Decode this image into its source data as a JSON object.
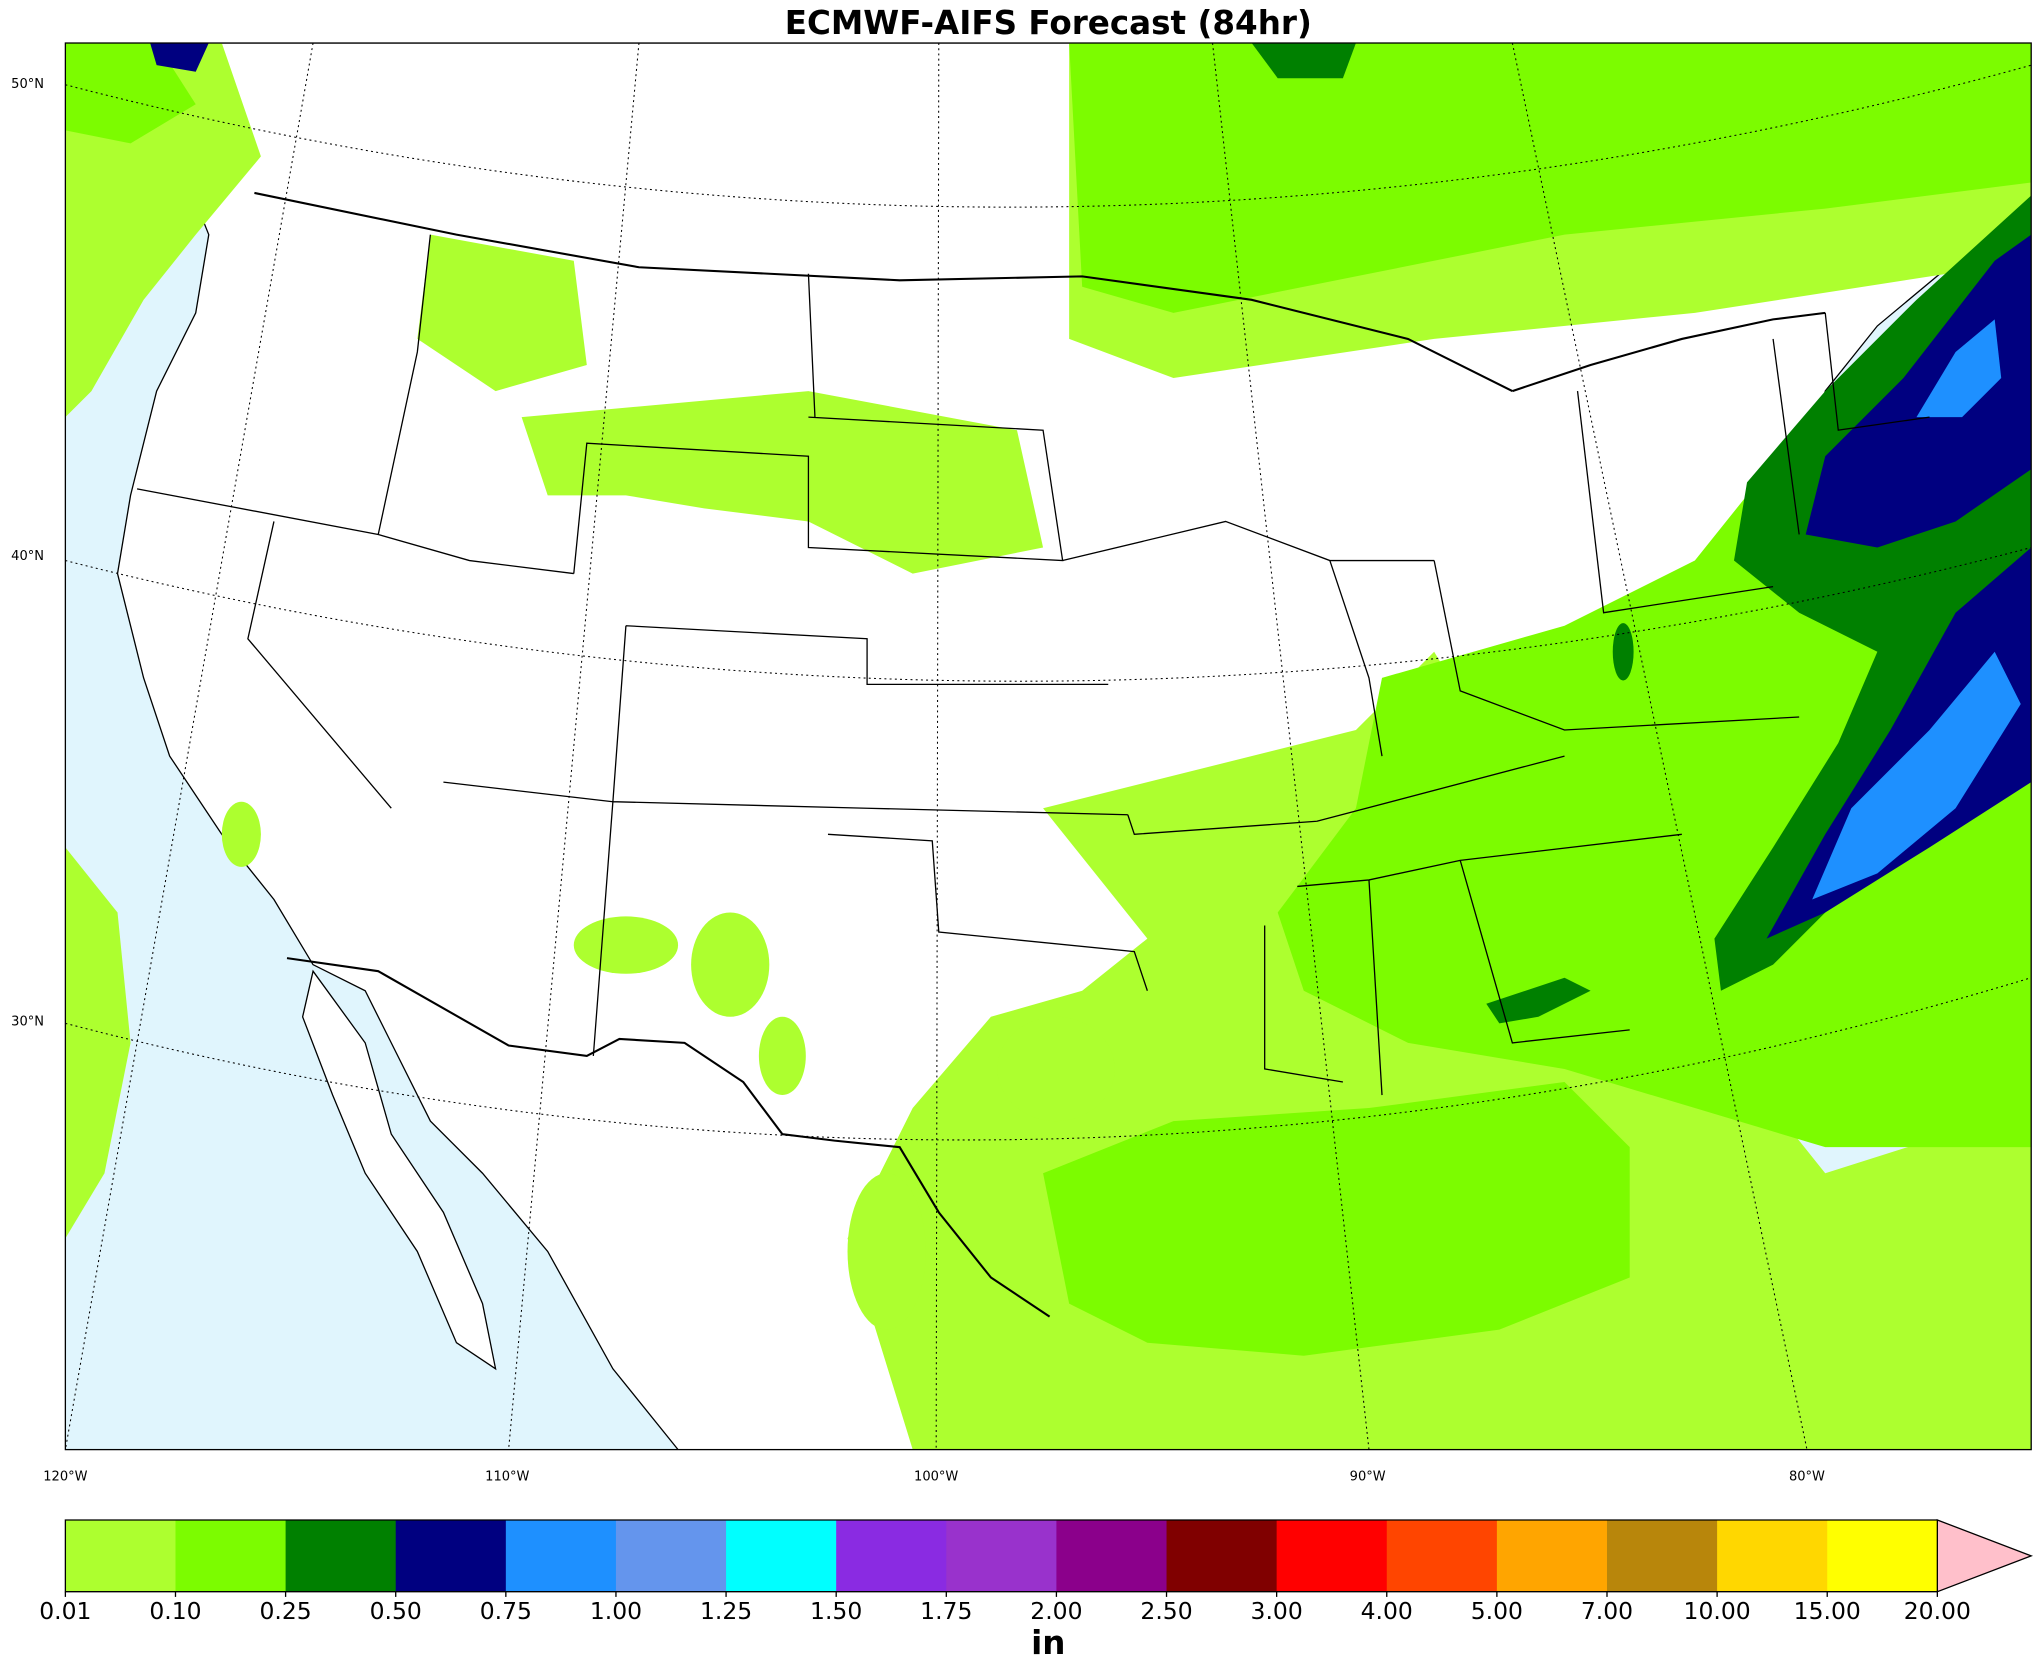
{
  "title": "ECMWF-AIFS Forecast (84hr)",
  "map": {
    "lat_labels": [
      "50°N",
      "40°N",
      "30°N"
    ],
    "lon_labels": [
      "120°W",
      "110°W",
      "100°W",
      "90°W",
      "80°W"
    ]
  },
  "colorbar": {
    "levels": [
      0.01,
      {
        "value": 0.1,
        "label": "0.10"
      },
      0.25,
      {
        "value": 0.5,
        "label": "0.50"
      },
      0.75,
      {
        "value": 1,
        "label": "1.00"
      },
      1.25,
      {
        "value": 1.5,
        "label": "1.50"
      },
      1.75,
      {
        "value": 2,
        "label": "2.00"
      },
      {
        "value": 2.5,
        "label": "2.50"
      },
      {
        "value": 3,
        "label": "3.00"
      },
      {
        "value": 4,
        "label": "4.00"
      },
      {
        "value": 5,
        "label": "5.00"
      },
      {
        "value": 7,
        "label": "7.00"
      },
      {
        "value": 10,
        "label": "10.00"
      },
      {
        "value": 15,
        "label": "15.00"
      },
      {
        "value": 20,
        "label": "20.00"
      }
    ],
    "colors": [
      "#adff2f",
      "#7cfc00",
      "#008000",
      "#000080",
      "#1e90ff",
      "#6495ed",
      "#00ffff",
      "#8a2be2",
      "#9932cc",
      "#8b008b",
      "#800000",
      "#ff0000",
      "#ff4500",
      "#ffa500",
      "#b8860b",
      "#ffd700",
      "#ffff00"
    ],
    "extend_color": "#ffc0cb",
    "unit": "in"
  }
}
